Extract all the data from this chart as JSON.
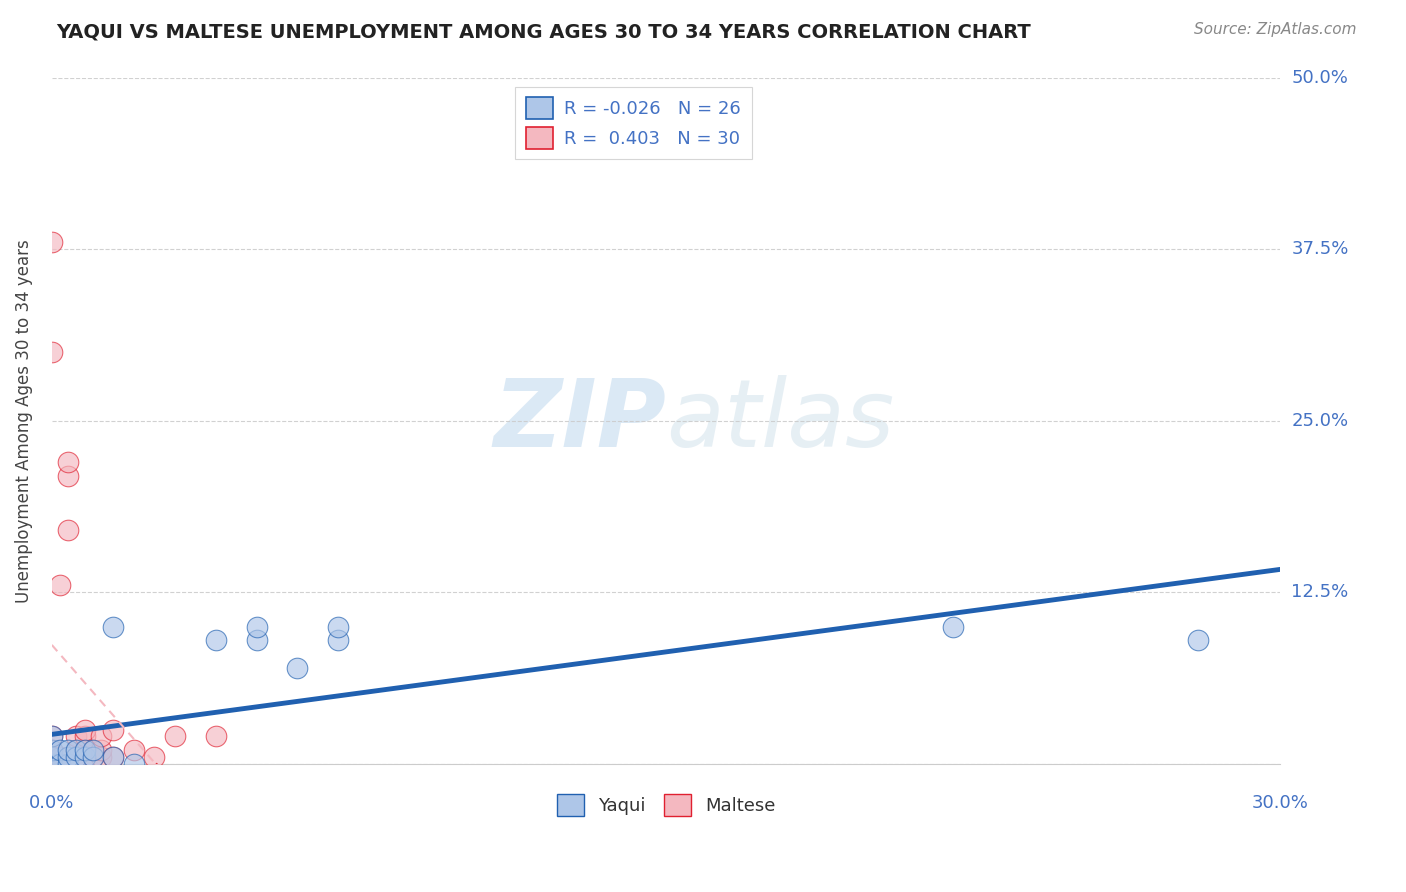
{
  "title": "YAQUI VS MALTESE UNEMPLOYMENT AMONG AGES 30 TO 34 YEARS CORRELATION CHART",
  "source_text": "Source: ZipAtlas.com",
  "ylabel": "Unemployment Among Ages 30 to 34 years",
  "xlim": [
    0.0,
    0.3
  ],
  "ylim": [
    0.0,
    0.5
  ],
  "xticks": [
    0.0,
    0.05,
    0.1,
    0.15,
    0.2,
    0.25,
    0.3
  ],
  "xticklabels": [
    "0.0%",
    "",
    "",
    "",
    "",
    "",
    "30.0%"
  ],
  "yticks": [
    0.0,
    0.125,
    0.25,
    0.375,
    0.5
  ],
  "yticklabels": [
    "",
    "12.5%",
    "25.0%",
    "37.5%",
    "50.0%"
  ],
  "yaqui_R": -0.026,
  "yaqui_N": 26,
  "maltese_R": 0.403,
  "maltese_N": 30,
  "yaqui_color": "#aec6e8",
  "maltese_color": "#f4b8c0",
  "yaqui_line_color": "#2060b0",
  "maltese_line_color": "#e02030",
  "watermark_color": "#cce0f0",
  "background_color": "#ffffff",
  "yaqui_x": [
    0.0,
    0.0,
    0.0,
    0.0,
    0.002,
    0.002,
    0.004,
    0.004,
    0.004,
    0.006,
    0.006,
    0.008,
    0.008,
    0.01,
    0.01,
    0.015,
    0.015,
    0.02,
    0.04,
    0.05,
    0.05,
    0.06,
    0.07,
    0.07,
    0.22,
    0.28
  ],
  "yaqui_y": [
    0.0,
    0.005,
    0.01,
    0.02,
    0.0,
    0.01,
    0.0,
    0.005,
    0.01,
    0.005,
    0.01,
    0.005,
    0.01,
    0.005,
    0.01,
    0.1,
    0.005,
    0.0,
    0.09,
    0.09,
    0.1,
    0.07,
    0.09,
    0.1,
    0.1,
    0.09
  ],
  "maltese_x": [
    0.0,
    0.0,
    0.0,
    0.0,
    0.0,
    0.0,
    0.002,
    0.002,
    0.002,
    0.004,
    0.004,
    0.004,
    0.006,
    0.006,
    0.006,
    0.008,
    0.008,
    0.008,
    0.008,
    0.01,
    0.01,
    0.012,
    0.012,
    0.012,
    0.015,
    0.015,
    0.02,
    0.025,
    0.03,
    0.04
  ],
  "maltese_y": [
    0.0,
    0.005,
    0.01,
    0.02,
    0.3,
    0.38,
    0.0,
    0.005,
    0.13,
    0.17,
    0.21,
    0.22,
    0.005,
    0.01,
    0.02,
    0.005,
    0.01,
    0.02,
    0.025,
    0.005,
    0.01,
    0.005,
    0.01,
    0.02,
    0.005,
    0.025,
    0.01,
    0.005,
    0.02,
    0.02
  ],
  "grid_color": "#cccccc",
  "tick_label_color": "#4472c4",
  "title_color": "#222222",
  "source_color": "#888888",
  "ylabel_color": "#444444"
}
